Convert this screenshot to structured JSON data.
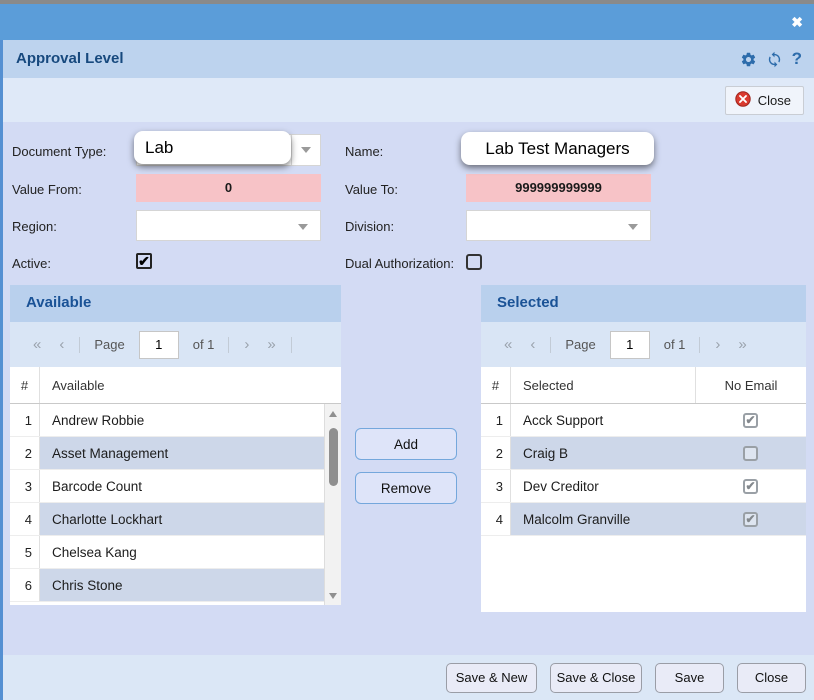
{
  "window": {
    "close_glyph": "✖"
  },
  "header": {
    "title": "Approval Level",
    "icons": [
      "settings",
      "refresh",
      "help"
    ],
    "help_glyph": "?"
  },
  "toolbar": {
    "close_label": "Close"
  },
  "form": {
    "document_type": {
      "label": "Document Type:",
      "value": "Lab"
    },
    "name": {
      "label": "Name:",
      "value": "Lab Test Managers"
    },
    "value_from": {
      "label": "Value From:",
      "value": "0"
    },
    "value_to": {
      "label": "Value To:",
      "value": "999999999999"
    },
    "region": {
      "label": "Region:",
      "value": ""
    },
    "division": {
      "label": "Division:",
      "value": ""
    },
    "active": {
      "label": "Active:",
      "checked": true
    },
    "dual_authorization": {
      "label": "Dual Authorization:",
      "checked": false
    }
  },
  "available_panel": {
    "title": "Available",
    "pager": {
      "first": "«",
      "prev": "‹",
      "page_label": "Page",
      "page_value": "1",
      "of_label": "of 1",
      "next": "›",
      "last": "»"
    },
    "columns": [
      "#",
      "Available"
    ],
    "rows": [
      {
        "num": "1",
        "name": "Andrew Robbie"
      },
      {
        "num": "2",
        "name": "Asset Management"
      },
      {
        "num": "3",
        "name": "Barcode Count"
      },
      {
        "num": "4",
        "name": "Charlotte Lockhart"
      },
      {
        "num": "5",
        "name": "Chelsea Kang"
      },
      {
        "num": "6",
        "name": "Chris Stone"
      }
    ]
  },
  "selected_panel": {
    "title": "Selected",
    "pager": {
      "first": "«",
      "prev": "‹",
      "page_label": "Page",
      "page_value": "1",
      "of_label": "of 1",
      "next": "›",
      "last": "»"
    },
    "columns": [
      "#",
      "Selected",
      "No Email"
    ],
    "rows": [
      {
        "num": "1",
        "name": "Acck Support",
        "no_email": true
      },
      {
        "num": "2",
        "name": "Craig B",
        "no_email": false
      },
      {
        "num": "3",
        "name": "Dev Creditor",
        "no_email": true
      },
      {
        "num": "4",
        "name": "Malcolm Granville",
        "no_email": true
      }
    ]
  },
  "transfer": {
    "add_label": "Add",
    "remove_label": "Remove"
  },
  "footer": {
    "buttons": [
      "Save & New",
      "Save & Close",
      "Save",
      "Close"
    ]
  },
  "icons": {
    "check": "✔"
  },
  "colors": {
    "titlebar": "#5b9dd9",
    "header_bg": "#bdd3ee",
    "panel_header_bg": "#b9d0ed",
    "body_bg": "#d3dbf4",
    "invalid_field_bg": "#f7c3c7",
    "accent_text": "#17497e",
    "row_alt_bg": "#cdd7e9",
    "close_icon_red": "#d93a2f"
  }
}
